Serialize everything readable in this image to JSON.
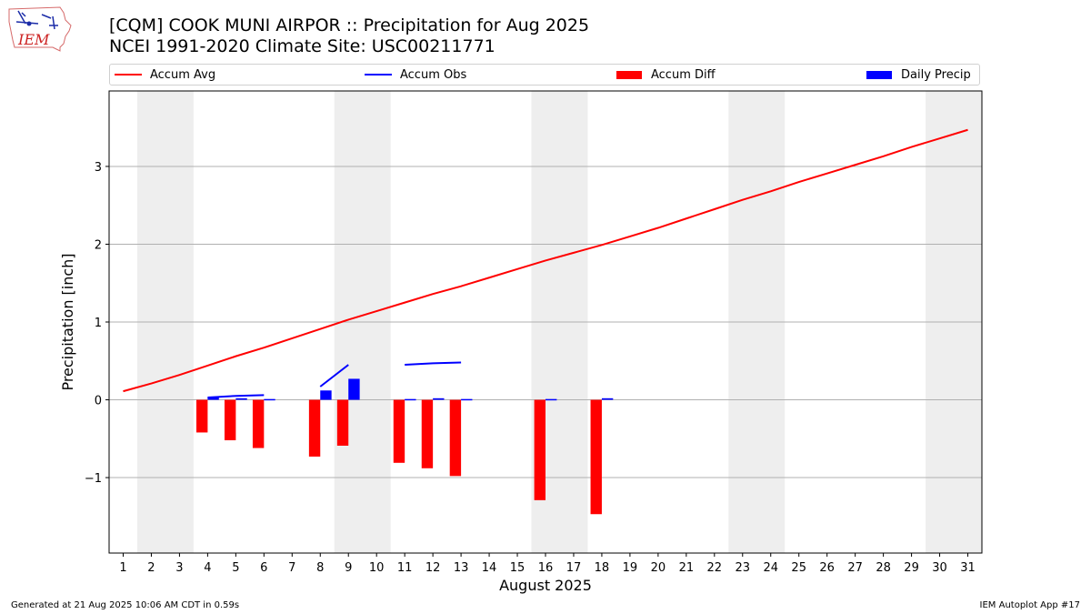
{
  "header": {
    "title_line1": "[CQM] COOK MUNI AIRPOR :: Precipitation for Aug 2025",
    "title_line2": "NCEI 1991-2020 Climate Site: USC00211771",
    "logo_text": "IEM"
  },
  "legend": [
    {
      "label": "Accum Avg",
      "color": "#ff0000",
      "kind": "line"
    },
    {
      "label": "Accum Obs",
      "color": "#0000ff",
      "kind": "line"
    },
    {
      "label": "Accum Diff",
      "color": "#ff0000",
      "kind": "box"
    },
    {
      "label": "Daily Precip",
      "color": "#0000ff",
      "kind": "box"
    }
  ],
  "footer": {
    "generated": "Generated at 21 Aug 2025 10:06 AM CDT in 0.59s",
    "app": "IEM Autoplot App #17"
  },
  "chart_data": {
    "type": "bar",
    "title": "[CQM] COOK MUNI AIRPOR :: Precipitation for Aug 2025",
    "subtitle": "NCEI 1991-2020 Climate Site: USC00211771",
    "xlabel": "August 2025",
    "ylabel": "Precipitation [inch]",
    "xlim": [
      0.5,
      31.5
    ],
    "ylim": [
      -1.97,
      3.97
    ],
    "yticks": [
      -1,
      0,
      1,
      2,
      3
    ],
    "ytick_labels": [
      "−1",
      "0",
      "1",
      "2",
      "3"
    ],
    "xticks": [
      1,
      2,
      3,
      4,
      5,
      6,
      7,
      8,
      9,
      10,
      11,
      12,
      13,
      14,
      15,
      16,
      17,
      18,
      19,
      20,
      21,
      22,
      23,
      24,
      25,
      26,
      27,
      28,
      29,
      30,
      31
    ],
    "grid": "y",
    "legend_position": "top",
    "weekend_shading": [
      [
        1.5,
        3.5
      ],
      [
        8.5,
        10.5
      ],
      [
        15.5,
        17.5
      ],
      [
        22.5,
        24.5
      ],
      [
        29.5,
        31.5
      ]
    ],
    "shading_color": "#eeeeee",
    "series": [
      {
        "name": "Accum Avg",
        "type": "line",
        "color": "#ff0000",
        "x": [
          1,
          2,
          3,
          4,
          5,
          6,
          7,
          8,
          9,
          10,
          11,
          12,
          13,
          14,
          15,
          16,
          17,
          18,
          19,
          20,
          21,
          22,
          23,
          24,
          25,
          26,
          27,
          28,
          29,
          30,
          31
        ],
        "values": [
          0.11,
          0.21,
          0.32,
          0.44,
          0.56,
          0.67,
          0.79,
          0.91,
          1.03,
          1.14,
          1.25,
          1.36,
          1.46,
          1.57,
          1.68,
          1.79,
          1.89,
          1.99,
          2.1,
          2.21,
          2.33,
          2.45,
          2.57,
          2.68,
          2.8,
          2.91,
          3.02,
          3.13,
          3.25,
          3.36,
          3.47
        ]
      },
      {
        "name": "Accum Obs",
        "type": "line",
        "color": "#0000ff",
        "segments": [
          {
            "x": [
              4,
              5,
              6
            ],
            "values": [
              0.03,
              0.05,
              0.06
            ]
          },
          {
            "x": [
              8,
              9
            ],
            "values": [
              0.17,
              0.45
            ]
          },
          {
            "x": [
              11,
              12,
              13
            ],
            "values": [
              0.45,
              0.47,
              0.48
            ]
          }
        ]
      },
      {
        "name": "Accum Diff",
        "type": "bar",
        "color": "#ff0000",
        "x": [
          4,
          5,
          6,
          8,
          9,
          11,
          12,
          13,
          16,
          18
        ],
        "values": [
          -0.42,
          -0.52,
          -0.62,
          -0.73,
          -0.59,
          -0.81,
          -0.88,
          -0.98,
          -1.29,
          -1.47
        ]
      },
      {
        "name": "Daily Precip",
        "type": "bar",
        "color": "#0000ff",
        "x": [
          4,
          5,
          6,
          8,
          9,
          11,
          12,
          13,
          16,
          18
        ],
        "values": [
          0.03,
          0.02,
          0.01,
          0.12,
          0.27,
          0.01,
          0.02,
          0.01,
          0.01,
          0.02
        ]
      }
    ]
  }
}
